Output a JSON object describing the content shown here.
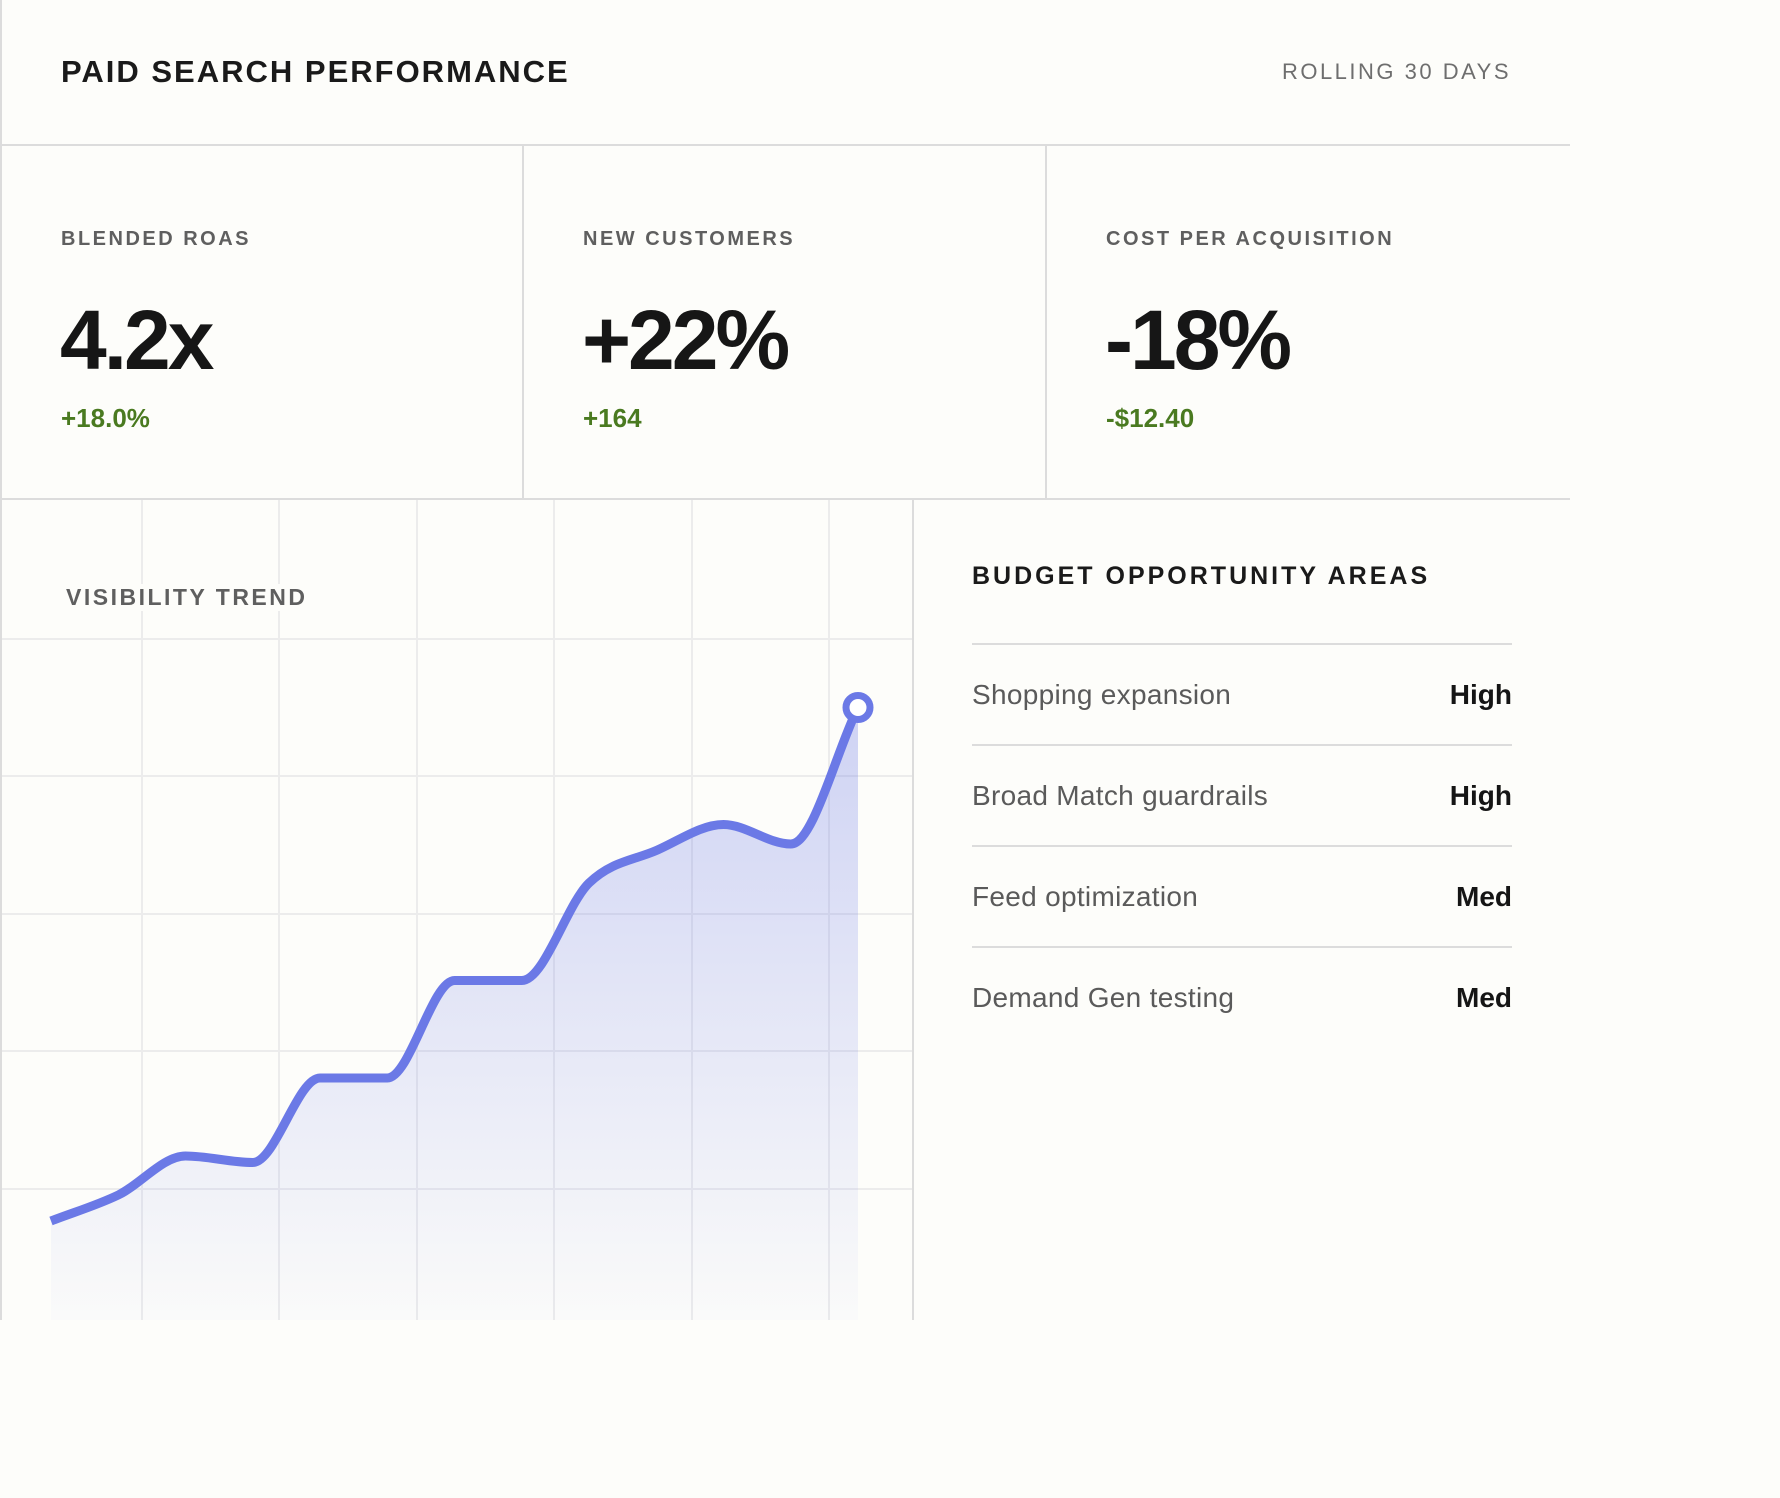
{
  "header": {
    "title": "PAID SEARCH PERFORMANCE",
    "range_label": "ROLLING 30 DAYS"
  },
  "kpis": [
    {
      "label": "BLENDED ROAS",
      "value": "4.2x",
      "delta": "+18.0%"
    },
    {
      "label": "NEW CUSTOMERS",
      "value": "+22%",
      "delta": "+164"
    },
    {
      "label": "COST PER ACQUISITION",
      "value": "-18%",
      "delta": "-$12.40"
    }
  ],
  "colors": {
    "accent": "#6b79e6",
    "positive_delta": "#4a7a20",
    "grid": "#ececec",
    "divider": "#dcdcdc"
  },
  "chart_data": {
    "type": "area",
    "title": "VISIBILITY TREND",
    "xlabel": "",
    "ylabel": "",
    "grid": true,
    "legend": "none",
    "x": [
      0,
      1,
      2,
      3,
      4,
      5,
      6,
      7,
      8,
      9,
      10,
      11,
      12
    ],
    "series": [
      {
        "values": [
          6,
          10,
          16,
          15,
          28,
          28,
          43,
          43,
          58,
          63,
          67,
          64,
          85
        ]
      }
    ],
    "ylim": [
      0,
      100
    ],
    "end_marker": true
  },
  "opportunities": {
    "title": "BUDGET OPPORTUNITY AREAS",
    "items": [
      {
        "name": "Shopping expansion",
        "level": "High"
      },
      {
        "name": "Broad Match guardrails",
        "level": "High"
      },
      {
        "name": "Feed optimization",
        "level": "Med"
      },
      {
        "name": "Demand Gen testing",
        "level": "Med"
      }
    ]
  }
}
